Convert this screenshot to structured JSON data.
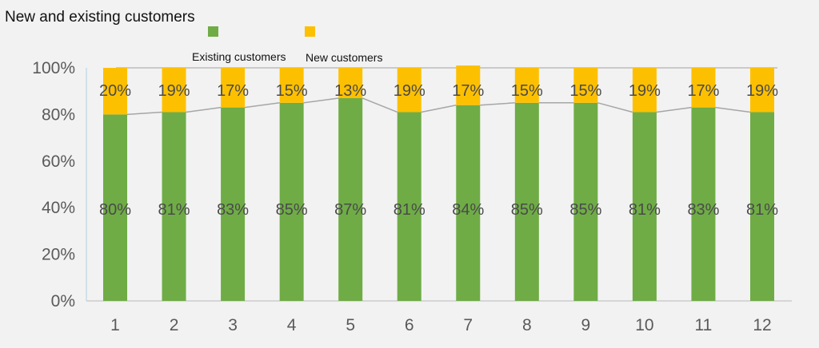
{
  "chart_data": {
    "type": "bar",
    "stacked": true,
    "percent": true,
    "title": "New and existing customers",
    "categories": [
      "1",
      "2",
      "3",
      "4",
      "5",
      "6",
      "7",
      "8",
      "9",
      "10",
      "11",
      "12"
    ],
    "series": [
      {
        "name": "Existing customers",
        "color": "#6fac46",
        "values": [
          80,
          81,
          83,
          85,
          87,
          81,
          84,
          85,
          85,
          81,
          83,
          81
        ],
        "labels": [
          "80%",
          "81%",
          "83%",
          "85%",
          "87%",
          "81%",
          "84%",
          "85%",
          "85%",
          "81%",
          "83%",
          "81%"
        ]
      },
      {
        "name": "New customers",
        "color": "#fdc000",
        "values": [
          20,
          19,
          17,
          15,
          13,
          19,
          17,
          15,
          15,
          19,
          17,
          19
        ],
        "labels": [
          "20%",
          "19%",
          "17%",
          "15%",
          "13%",
          "19%",
          "17%",
          "15%",
          "15%",
          "19%",
          "17%",
          "19%"
        ]
      }
    ],
    "ylim": [
      0,
      100
    ],
    "yticks": [
      "0%",
      "20%",
      "40%",
      "60%",
      "80%",
      "100%"
    ],
    "xlabel": "",
    "ylabel": "",
    "legend": "top-center",
    "grid": false,
    "series_lines": true,
    "line_color": "#a6a6a6"
  }
}
